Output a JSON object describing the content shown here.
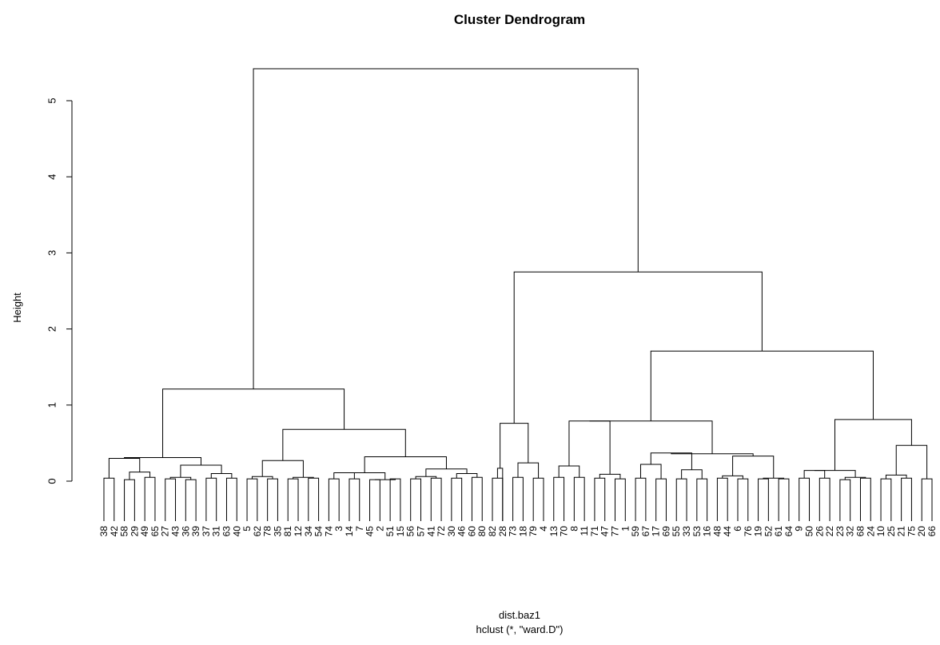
{
  "chart_data": {
    "type": "dendrogram",
    "title": "Cluster Dendrogram",
    "xlabel": "dist.baz1",
    "sub": "hclust (*, \"ward.D\")",
    "ylabel": "Height",
    "ylim": [
      0,
      5.5
    ],
    "yticks": [
      0,
      1,
      2,
      3,
      4,
      5
    ],
    "leaf_order": [
      "38",
      "42",
      "58",
      "29",
      "49",
      "65",
      "27",
      "43",
      "36",
      "39",
      "37",
      "31",
      "63",
      "40",
      "5",
      "62",
      "78",
      "35",
      "81",
      "12",
      "34",
      "54",
      "74",
      "3",
      "14",
      "7",
      "45",
      "2",
      "51",
      "15",
      "56",
      "57",
      "41",
      "72",
      "30",
      "46",
      "60",
      "80",
      "82",
      "28",
      "73",
      "18",
      "79",
      "4",
      "13",
      "70",
      "8",
      "11",
      "71",
      "47",
      "77",
      "1",
      "59",
      "67",
      "17",
      "69",
      "55",
      "33",
      "53",
      "16",
      "48",
      "44",
      "6",
      "76",
      "19",
      "52",
      "61",
      "64",
      "9",
      "50",
      "26",
      "22",
      "23",
      "32",
      "68",
      "24",
      "10",
      "25",
      "21",
      "75",
      "20",
      "66"
    ],
    "merges": [
      {
        "l": [
          0,
          1
        ],
        "h": 0.04
      },
      {
        "l": [
          2,
          3
        ],
        "h": 0.02
      },
      {
        "l": [
          4,
          5
        ],
        "h": 0.05
      },
      {
        "l": [
          6,
          7
        ],
        "h": 0.03
      },
      {
        "l": [
          8,
          9
        ],
        "h": 0.02
      },
      {
        "l": [
          10,
          11
        ],
        "h": 0.04
      },
      {
        "l": [
          12,
          13
        ],
        "h": 0.04
      },
      {
        "l": [
          14,
          15
        ],
        "h": 0.03
      },
      {
        "l": [
          16,
          17
        ],
        "h": 0.03
      },
      {
        "l": [
          18,
          19
        ],
        "h": 0.03
      },
      {
        "l": [
          20,
          21
        ],
        "h": 0.04
      },
      {
        "l": [
          22,
          23
        ],
        "h": 0.03
      },
      {
        "l": [
          24,
          25
        ],
        "h": 0.03
      },
      {
        "l": [
          26,
          27
        ],
        "h": 0.02
      },
      {
        "l": [
          28,
          29
        ],
        "h": 0.03
      },
      {
        "l": [
          30,
          31
        ],
        "h": 0.03
      },
      {
        "l": [
          32,
          33
        ],
        "h": 0.04
      },
      {
        "l": [
          34,
          35
        ],
        "h": 0.04
      },
      {
        "l": [
          36,
          37
        ],
        "h": 0.05
      },
      {
        "l": [
          38,
          39
        ],
        "h": 0.04
      },
      {
        "l": [
          40,
          41
        ],
        "h": 0.05
      },
      {
        "l": [
          42,
          43
        ],
        "h": 0.04
      },
      {
        "l": [
          44,
          45
        ],
        "h": 0.05
      },
      {
        "l": [
          46,
          47
        ],
        "h": 0.05
      },
      {
        "l": [
          48,
          49
        ],
        "h": 0.04
      },
      {
        "l": [
          50,
          51
        ],
        "h": 0.03
      },
      {
        "l": [
          52,
          53
        ],
        "h": 0.04
      },
      {
        "l": [
          54,
          55
        ],
        "h": 0.03
      },
      {
        "l": [
          56,
          57
        ],
        "h": 0.03
      },
      {
        "l": [
          58,
          59
        ],
        "h": 0.03
      },
      {
        "l": [
          60,
          61
        ],
        "h": 0.04
      },
      {
        "l": [
          62,
          63
        ],
        "h": 0.03
      },
      {
        "l": [
          64,
          65
        ],
        "h": 0.03
      },
      {
        "l": [
          66,
          67
        ],
        "h": 0.03
      },
      {
        "l": [
          68,
          69
        ],
        "h": 0.04
      },
      {
        "l": [
          70,
          71
        ],
        "h": 0.04
      },
      {
        "l": [
          72,
          73
        ],
        "h": 0.02
      },
      {
        "l": [
          74,
          75
        ],
        "h": 0.04
      },
      {
        "l": [
          76,
          77
        ],
        "h": 0.03
      },
      {
        "l": [
          78,
          79
        ],
        "h": 0.04
      },
      {
        "l": [
          80,
          81
        ],
        "h": 0.03
      }
    ]
  }
}
